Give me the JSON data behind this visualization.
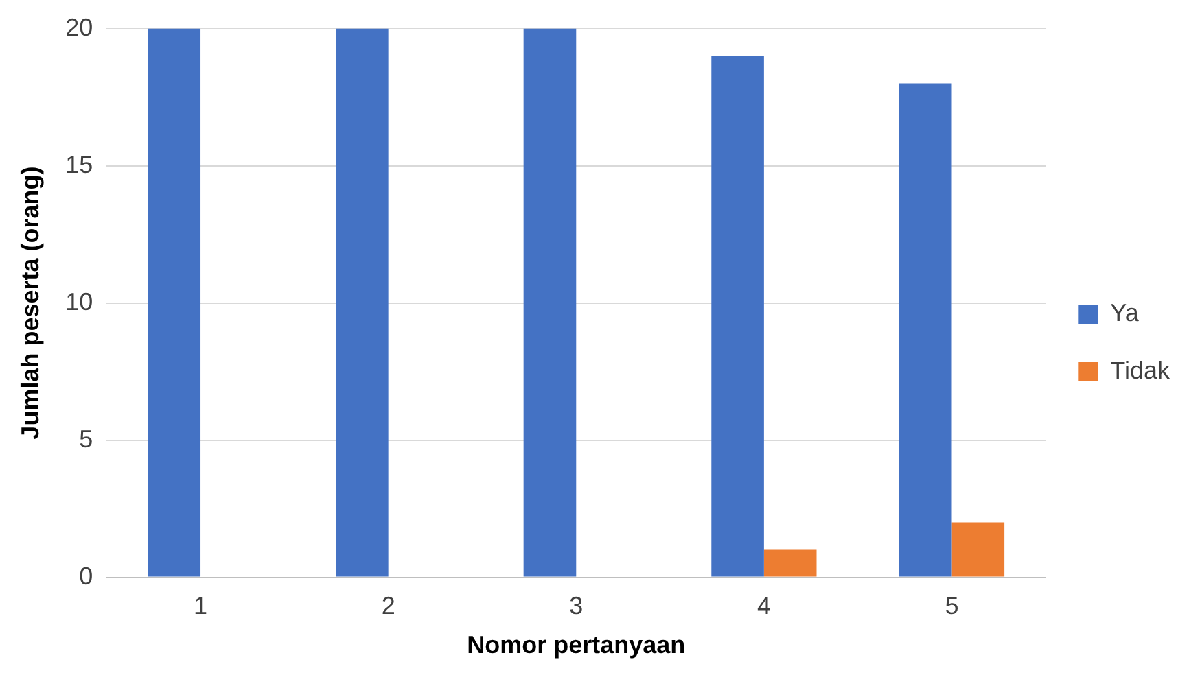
{
  "chart_data": {
    "type": "bar",
    "xlabel": "Nomor pertanyaan",
    "ylabel": "Jumlah peserta (orang)",
    "categories": [
      "1",
      "2",
      "3",
      "4",
      "5"
    ],
    "series": [
      {
        "name": "Ya",
        "color": "#4472c4",
        "values": [
          20,
          20,
          20,
          19,
          18
        ]
      },
      {
        "name": "Tidak",
        "color": "#ed7d31",
        "values": [
          0,
          0,
          0,
          1,
          2
        ]
      }
    ],
    "ylim": [
      0,
      20
    ],
    "yticks": [
      0,
      5,
      10,
      15,
      20
    ],
    "grid": "y",
    "legend": "right"
  }
}
